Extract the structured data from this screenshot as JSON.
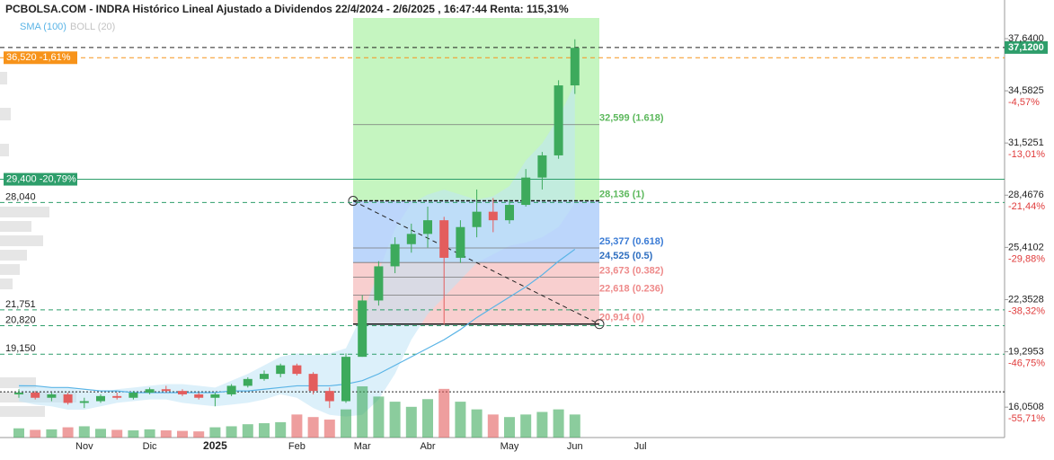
{
  "chart_data": {
    "type": "candlestick",
    "title": "PCBOLSA.COM - INDRA Histórico Lineal Ajustado a Dividendos 22/4/2024 - 2/6/2025 , 16:47:44 Renta: 115,31%",
    "categories": [
      null,
      null,
      null,
      null,
      "Nov",
      null,
      null,
      null,
      "Dic",
      null,
      null,
      null,
      "2025",
      null,
      null,
      null,
      null,
      "Feb",
      null,
      null,
      null,
      "Mar",
      null,
      null,
      null,
      "Abr",
      null,
      null,
      null,
      null,
      "May",
      null,
      null,
      null,
      "Jun",
      null,
      null,
      null,
      "Jul"
    ],
    "open": [
      16.8,
      16.9,
      16.6,
      16.8,
      16.3,
      16.4,
      16.7,
      16.6,
      16.9,
      17.1,
      17.0,
      16.8,
      16.6,
      16.8,
      17.3,
      17.7,
      18.0,
      18.5,
      18.0,
      17.0,
      16.4,
      19.0,
      22.3,
      24.3,
      25.6,
      26.2,
      27.0,
      24.8,
      26.6,
      27.5,
      27.0,
      27.9,
      29.5,
      30.8,
      34.9,
      null,
      null,
      null,
      null
    ],
    "high": [
      17.1,
      17.0,
      16.9,
      16.9,
      16.6,
      16.8,
      16.9,
      17.0,
      17.2,
      17.3,
      17.1,
      16.9,
      16.9,
      17.4,
      17.8,
      18.2,
      18.6,
      18.6,
      18.1,
      17.2,
      19.2,
      22.6,
      24.6,
      26.0,
      26.8,
      27.8,
      27.2,
      27.0,
      28.8,
      28.3,
      28.2,
      30.0,
      31.0,
      35.2,
      37.6,
      null,
      null,
      null,
      null
    ],
    "low": [
      16.6,
      16.5,
      16.4,
      16.2,
      16.0,
      16.3,
      16.5,
      16.5,
      16.8,
      16.9,
      16.7,
      16.5,
      16.1,
      16.7,
      17.2,
      17.6,
      17.8,
      17.9,
      16.8,
      16.0,
      16.3,
      19.0,
      22.0,
      23.9,
      25.1,
      25.4,
      20.9,
      24.5,
      26.0,
      26.3,
      26.8,
      27.8,
      28.8,
      30.6,
      34.4,
      null,
      null,
      null,
      null
    ],
    "close": [
      16.9,
      16.6,
      16.8,
      16.3,
      16.4,
      16.7,
      16.6,
      16.9,
      17.1,
      17.0,
      16.8,
      16.6,
      16.8,
      17.3,
      17.7,
      18.0,
      18.5,
      18.0,
      17.0,
      16.4,
      19.0,
      22.3,
      24.3,
      25.6,
      26.2,
      27.0,
      24.8,
      26.6,
      27.5,
      27.0,
      27.9,
      29.5,
      30.8,
      34.9,
      37.1,
      null,
      null,
      null,
      null
    ],
    "volume": [
      18,
      15,
      16,
      20,
      22,
      17,
      15,
      14,
      16,
      14,
      13,
      12,
      20,
      22,
      26,
      28,
      30,
      45,
      40,
      35,
      55,
      100,
      80,
      70,
      60,
      75,
      95,
      70,
      55,
      45,
      40,
      45,
      50,
      55,
      45,
      null,
      null,
      null,
      null
    ],
    "vlim": [
      0,
      100
    ],
    "colors": {
      "up": "#3daa5c",
      "down": "#e35d5d"
    },
    "indicators": [
      {
        "name": "SMA (100)",
        "color": "#5ab4e6",
        "values": [
          17.3,
          17.3,
          17.2,
          17.2,
          17.1,
          17.0,
          17.0,
          16.9,
          16.9,
          16.9,
          16.9,
          16.9,
          16.9,
          17.0,
          17.0,
          17.1,
          17.2,
          17.3,
          17.3,
          17.3,
          17.4,
          17.6,
          18.0,
          18.5,
          19.0,
          19.5,
          20.0,
          20.6,
          21.3,
          21.9,
          22.5,
          23.1,
          23.8,
          24.6,
          25.3,
          null,
          null,
          null,
          null
        ]
      },
      {
        "name": "BOLL (20)",
        "color": "#c3c3c3",
        "fill": "#bfe3f5",
        "upper": [
          17.4,
          17.3,
          17.2,
          17.2,
          17.0,
          16.9,
          17.1,
          17.2,
          17.3,
          17.4,
          17.4,
          17.3,
          17.2,
          17.6,
          18.0,
          18.5,
          19.0,
          19.2,
          19.1,
          19.2,
          19.5,
          21.5,
          24.0,
          26.5,
          28.0,
          28.5,
          28.8,
          28.5,
          28.2,
          28.4,
          29.0,
          30.5,
          31.5,
          33.0,
          35.0,
          null,
          null,
          null,
          null
        ],
        "lower": [
          16.4,
          16.2,
          16.1,
          15.9,
          15.9,
          16.1,
          16.3,
          16.4,
          16.5,
          16.5,
          16.3,
          16.2,
          16.1,
          16.2,
          16.3,
          16.5,
          16.8,
          16.6,
          16.0,
          15.6,
          15.5,
          15.6,
          16.5,
          18.0,
          20.0,
          21.5,
          22.5,
          23.5,
          24.5,
          25.0,
          25.5,
          25.7,
          26.0,
          26.6,
          28.0,
          null,
          null,
          null,
          null
        ]
      }
    ],
    "ylim": [
      14.27,
      38.85
    ],
    "yticks": [
      {
        "value": 37.64,
        "label": "37,6400"
      },
      {
        "value": 34.5825,
        "label": "34,5825"
      },
      {
        "value": 31.5251,
        "label": "31,5251"
      },
      {
        "value": 28.4676,
        "label": "28,4676"
      },
      {
        "value": 25.4102,
        "label": "25,4102"
      },
      {
        "value": 22.3528,
        "label": "22,3528"
      },
      {
        "value": 19.2953,
        "label": "19,2953"
      },
      {
        "value": 16.0508,
        "label": "16,0508"
      }
    ],
    "ytick_notes": [
      null,
      "-4,57%",
      "-13,01%",
      "-21,44%",
      "-29,88%",
      "-38,32%",
      "-46,75%",
      "-55,71%"
    ],
    "levels": [
      {
        "value": 37.12,
        "label": "37,1200",
        "color": "#2e9e6b",
        "line": "#222",
        "style": "dashed",
        "side": "right"
      },
      {
        "value": 36.52,
        "label": "36,520 -1,61%",
        "color": "#f7931a",
        "line": "#f7931a",
        "style": "dashed",
        "side": "left"
      },
      {
        "value": 29.4,
        "label": "29,400 -20,79%",
        "color": "#2e9e6b",
        "line": "#2e9e6b",
        "style": "solid",
        "side": "left"
      },
      {
        "value": 28.04,
        "label": "28,040",
        "line": "#2e9e6b",
        "style": "dashed",
        "side": "text"
      },
      {
        "value": 21.751,
        "label": "21,751",
        "line": "#2e9e6b",
        "style": "dashed",
        "side": "text"
      },
      {
        "value": 20.82,
        "label": "20,820",
        "line": "#2e9e6b",
        "style": "dashed",
        "side": "text"
      },
      {
        "value": 19.15,
        "label": "19,150",
        "line": "#2e9e6b",
        "style": "dashed",
        "side": "text"
      },
      {
        "value": 16.95,
        "line": "#222",
        "style": "dotted",
        "side": "none"
      }
    ],
    "fib": [
      {
        "value": 32.599,
        "label": "32,599 (1.618)",
        "color": "#5cb85c"
      },
      {
        "value": 28.136,
        "label": "28,136 (1)",
        "color": "#5cb85c"
      },
      {
        "value": 25.377,
        "label": "25,377 (0.618)",
        "color": "#3a7bd5"
      },
      {
        "value": 24.525,
        "label": "24,525 (0.5)",
        "color": "#2f6fc0"
      },
      {
        "value": 23.673,
        "label": "23,673 (0.382)",
        "color": "#ee8a8a"
      },
      {
        "value": 22.618,
        "label": "22,618 (0.236)",
        "color": "#ee8a8a"
      },
      {
        "value": 20.914,
        "label": "20,914 (0)",
        "color": "#ee8a8a"
      }
    ]
  }
}
